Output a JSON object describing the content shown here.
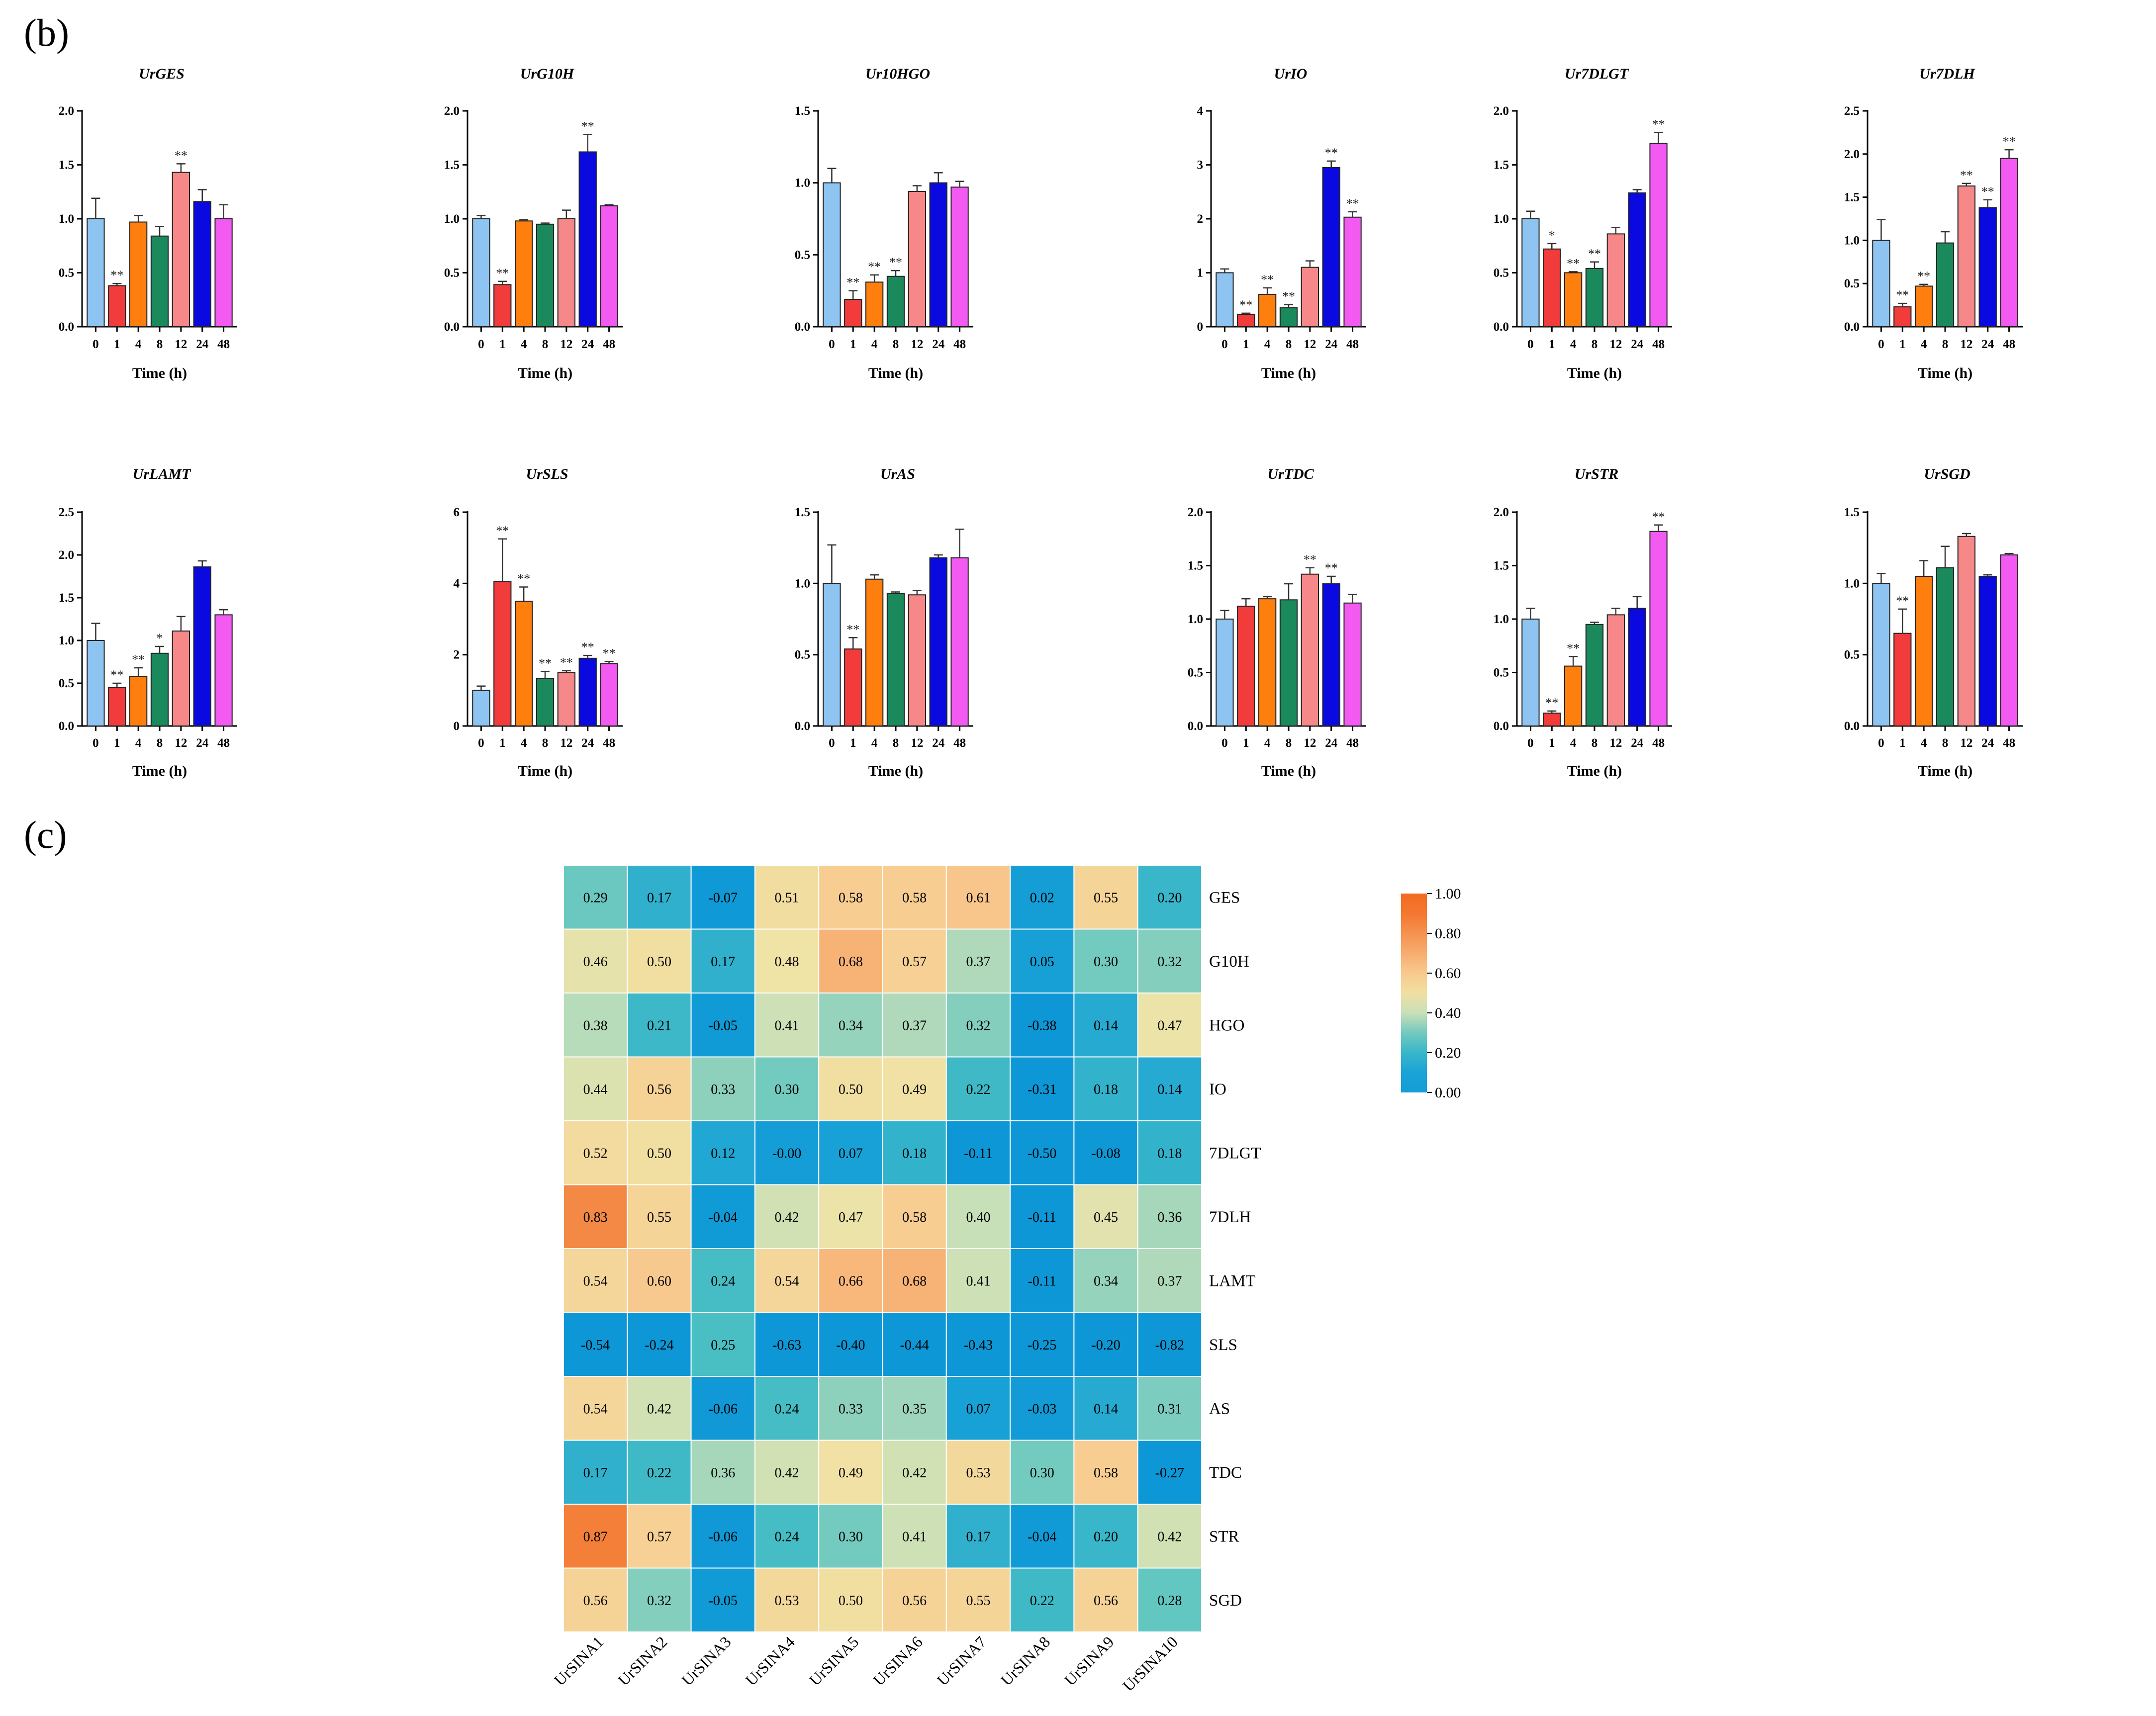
{
  "figure": {
    "panel_b_label": "(b)",
    "panel_c_label": "(c)",
    "colors": {
      "bars": [
        "#8ec4f2",
        "#f23b3b",
        "#ff7f0e",
        "#1a8a5c",
        "#f7888a",
        "#0a0ae0",
        "#f25af2"
      ],
      "heat_low": "#0d97d6",
      "heat_mid": "#f0e3a6",
      "heat_high": "#f36a22",
      "bar_stroke": "#222222",
      "axis": "#000000"
    }
  },
  "chart_data": [
    {
      "type": "bar",
      "title": "UrGES",
      "categories": [
        "0",
        "1",
        "4",
        "8",
        "12",
        "24",
        "48"
      ],
      "values": [
        1.0,
        0.38,
        0.97,
        0.84,
        1.43,
        1.16,
        1.0
      ],
      "errors": [
        0.19,
        0.02,
        0.06,
        0.09,
        0.08,
        0.11,
        0.13
      ],
      "significance": [
        "",
        "**",
        "",
        "",
        "**",
        "",
        ""
      ],
      "yticks": [
        "0.0",
        "0.5",
        "1.0",
        "1.5",
        "2.0"
      ],
      "ylim": [
        0,
        2.0
      ],
      "xlabel": "Time (h)"
    },
    {
      "type": "bar",
      "title": "UrG10H",
      "categories": [
        "0",
        "1",
        "4",
        "8",
        "12",
        "24",
        "48"
      ],
      "values": [
        1.0,
        0.39,
        0.98,
        0.95,
        1.0,
        1.62,
        1.12
      ],
      "errors": [
        0.03,
        0.03,
        0.01,
        0.01,
        0.08,
        0.16,
        0.01
      ],
      "significance": [
        "",
        "**",
        "",
        "",
        "",
        "**",
        ""
      ],
      "yticks": [
        "0.0",
        "0.5",
        "1.0",
        "1.5",
        "2.0"
      ],
      "ylim": [
        0,
        2.0
      ],
      "xlabel": "Time (h)"
    },
    {
      "type": "bar",
      "title": "Ur10HGO",
      "categories": [
        "0",
        "1",
        "4",
        "8",
        "12",
        "24",
        "48"
      ],
      "values": [
        1.0,
        0.19,
        0.31,
        0.35,
        0.94,
        1.0,
        0.97
      ],
      "errors": [
        0.1,
        0.06,
        0.05,
        0.04,
        0.04,
        0.07,
        0.04
      ],
      "significance": [
        "",
        "**",
        "**",
        "**",
        "",
        "",
        ""
      ],
      "yticks": [
        "0.0",
        "0.5",
        "1.0",
        "1.5"
      ],
      "ylim": [
        0,
        1.5
      ],
      "xlabel": "Time (h)"
    },
    {
      "type": "bar",
      "title": "UrIO",
      "categories": [
        "0",
        "1",
        "4",
        "8",
        "12",
        "24",
        "48"
      ],
      "values": [
        1.0,
        0.23,
        0.6,
        0.35,
        1.1,
        2.95,
        2.03
      ],
      "errors": [
        0.07,
        0.02,
        0.12,
        0.06,
        0.12,
        0.12,
        0.1
      ],
      "significance": [
        "",
        "**",
        "**",
        "**",
        "",
        "**",
        "**"
      ],
      "yticks": [
        "0",
        "1",
        "2",
        "3",
        "4"
      ],
      "ylim": [
        0,
        4
      ],
      "xlabel": "Time (h)"
    },
    {
      "type": "bar",
      "title": "Ur7DLGT",
      "categories": [
        "0",
        "1",
        "4",
        "8",
        "12",
        "24",
        "48"
      ],
      "values": [
        1.0,
        0.72,
        0.5,
        0.54,
        0.86,
        1.24,
        1.7
      ],
      "errors": [
        0.07,
        0.05,
        0.01,
        0.06,
        0.06,
        0.03,
        0.1
      ],
      "significance": [
        "",
        "*",
        "**",
        "**",
        "",
        "",
        "**"
      ],
      "yticks": [
        "0.0",
        "0.5",
        "1.0",
        "1.5",
        "2.0"
      ],
      "ylim": [
        0,
        2.0
      ],
      "xlabel": "Time (h)"
    },
    {
      "type": "bar",
      "title": "Ur7DLH",
      "categories": [
        "0",
        "1",
        "4",
        "8",
        "12",
        "24",
        "48"
      ],
      "values": [
        1.0,
        0.23,
        0.47,
        0.97,
        1.63,
        1.38,
        1.95
      ],
      "errors": [
        0.24,
        0.04,
        0.02,
        0.13,
        0.03,
        0.09,
        0.1
      ],
      "significance": [
        "",
        "**",
        "**",
        "",
        "**",
        "**",
        "**"
      ],
      "yticks": [
        "0.0",
        "0.5",
        "1.0",
        "1.5",
        "2.0",
        "2.5"
      ],
      "ylim": [
        0,
        2.5
      ],
      "xlabel": "Time (h)"
    },
    {
      "type": "bar",
      "title": "UrLAMT",
      "categories": [
        "0",
        "1",
        "4",
        "8",
        "12",
        "24",
        "48"
      ],
      "values": [
        1.0,
        0.45,
        0.58,
        0.85,
        1.11,
        1.86,
        1.3
      ],
      "errors": [
        0.2,
        0.05,
        0.1,
        0.08,
        0.17,
        0.07,
        0.06
      ],
      "significance": [
        "",
        "**",
        "**",
        "*",
        "",
        "",
        ""
      ],
      "yticks": [
        "0.0",
        "0.5",
        "1.0",
        "1.5",
        "2.0",
        "2.5"
      ],
      "ylim": [
        0,
        2.5
      ],
      "xlabel": "Time (h)"
    },
    {
      "type": "bar",
      "title": "UrSLS",
      "categories": [
        "0",
        "1",
        "4",
        "8",
        "12",
        "24",
        "48"
      ],
      "values": [
        1.0,
        4.05,
        3.5,
        1.33,
        1.5,
        1.9,
        1.75
      ],
      "errors": [
        0.12,
        1.2,
        0.4,
        0.2,
        0.05,
        0.08,
        0.06
      ],
      "significance": [
        "",
        "**",
        "**",
        "**",
        "**",
        "**",
        "**"
      ],
      "yticks": [
        "0",
        "2",
        "4",
        "6"
      ],
      "ylim": [
        0,
        6
      ],
      "xlabel": "Time (h)"
    },
    {
      "type": "bar",
      "title": "UrAS",
      "categories": [
        "0",
        "1",
        "4",
        "8",
        "12",
        "24",
        "48"
      ],
      "values": [
        1.0,
        0.54,
        1.03,
        0.93,
        0.92,
        1.18,
        1.18
      ],
      "errors": [
        0.27,
        0.08,
        0.03,
        0.01,
        0.03,
        0.02,
        0.2
      ],
      "significance": [
        "",
        "**",
        "",
        "",
        "",
        "",
        ""
      ],
      "yticks": [
        "0.0",
        "0.5",
        "1.0",
        "1.5"
      ],
      "ylim": [
        0,
        1.5
      ],
      "xlabel": "Time (h)"
    },
    {
      "type": "bar",
      "title": "UrTDC",
      "categories": [
        "0",
        "1",
        "4",
        "8",
        "12",
        "24",
        "48"
      ],
      "values": [
        1.0,
        1.12,
        1.19,
        1.18,
        1.42,
        1.33,
        1.15
      ],
      "errors": [
        0.08,
        0.07,
        0.02,
        0.15,
        0.06,
        0.07,
        0.08
      ],
      "significance": [
        "",
        "",
        "",
        "",
        "**",
        "**",
        ""
      ],
      "yticks": [
        "0.0",
        "0.5",
        "1.0",
        "1.5",
        "2.0"
      ],
      "ylim": [
        0,
        2.0
      ],
      "xlabel": "Time (h)"
    },
    {
      "type": "bar",
      "title": "UrSTR",
      "categories": [
        "0",
        "1",
        "4",
        "8",
        "12",
        "24",
        "48"
      ],
      "values": [
        1.0,
        0.12,
        0.56,
        0.95,
        1.04,
        1.1,
        1.82
      ],
      "errors": [
        0.1,
        0.02,
        0.09,
        0.02,
        0.06,
        0.11,
        0.06
      ],
      "significance": [
        "",
        "**",
        "**",
        "",
        "",
        "",
        "**"
      ],
      "yticks": [
        "0.0",
        "0.5",
        "1.0",
        "1.5",
        "2.0"
      ],
      "ylim": [
        0,
        2.0
      ],
      "xlabel": "Time (h)"
    },
    {
      "type": "bar",
      "title": "UrSGD",
      "categories": [
        "0",
        "1",
        "4",
        "8",
        "12",
        "24",
        "48"
      ],
      "values": [
        1.0,
        0.65,
        1.05,
        1.11,
        1.33,
        1.05,
        1.2
      ],
      "errors": [
        0.07,
        0.17,
        0.11,
        0.15,
        0.02,
        0.01,
        0.01
      ],
      "significance": [
        "",
        "**",
        "",
        "",
        "",
        "",
        ""
      ],
      "yticks": [
        "0.0",
        "0.5",
        "1.0",
        "1.5"
      ],
      "ylim": [
        0,
        1.5
      ],
      "xlabel": "Time (h)"
    },
    {
      "type": "heatmap",
      "rows": [
        "GES",
        "G10H",
        "HGO",
        "IO",
        "7DLGT",
        "7DLH",
        "LAMT",
        "SLS",
        "AS",
        "TDC",
        "STR",
        "SGD"
      ],
      "columns": [
        "UrSINA1",
        "UrSINA2",
        "UrSINA3",
        "UrSINA4",
        "UrSINA5",
        "UrSINA6",
        "UrSINA7",
        "UrSINA8",
        "UrSINA9",
        "UrSINA10"
      ],
      "values": [
        [
          "0.29",
          "0.17",
          "-0.07",
          "0.51",
          "0.58",
          "0.58",
          "0.61",
          "0.02",
          "0.55",
          "0.20"
        ],
        [
          "0.46",
          "0.50",
          "0.17",
          "0.48",
          "0.68",
          "0.57",
          "0.37",
          "0.05",
          "0.30",
          "0.32"
        ],
        [
          "0.38",
          "0.21",
          "-0.05",
          "0.41",
          "0.34",
          "0.37",
          "0.32",
          "-0.38",
          "0.14",
          "0.47"
        ],
        [
          "0.44",
          "0.56",
          "0.33",
          "0.30",
          "0.50",
          "0.49",
          "0.22",
          "-0.31",
          "0.18",
          "0.14"
        ],
        [
          "0.52",
          "0.50",
          "0.12",
          "-0.00",
          "0.07",
          "0.18",
          "-0.11",
          "-0.50",
          "-0.08",
          "0.18"
        ],
        [
          "0.83",
          "0.55",
          "-0.04",
          "0.42",
          "0.47",
          "0.58",
          "0.40",
          "-0.11",
          "0.45",
          "0.36"
        ],
        [
          "0.54",
          "0.60",
          "0.24",
          "0.54",
          "0.66",
          "0.68",
          "0.41",
          "-0.11",
          "0.34",
          "0.37"
        ],
        [
          "-0.54",
          "-0.24",
          "0.25",
          "-0.63",
          "-0.40",
          "-0.44",
          "-0.43",
          "-0.25",
          "-0.20",
          "-0.82"
        ],
        [
          "0.54",
          "0.42",
          "-0.06",
          "0.24",
          "0.33",
          "0.35",
          "0.07",
          "-0.03",
          "0.14",
          "0.31"
        ],
        [
          "0.17",
          "0.22",
          "0.36",
          "0.42",
          "0.49",
          "0.42",
          "0.53",
          "0.30",
          "0.58",
          "-0.27"
        ],
        [
          "0.87",
          "0.57",
          "-0.06",
          "0.24",
          "0.30",
          "0.41",
          "0.17",
          "-0.04",
          "0.20",
          "0.42"
        ],
        [
          "0.56",
          "0.32",
          "-0.05",
          "0.53",
          "0.50",
          "0.56",
          "0.55",
          "0.22",
          "0.56",
          "0.28"
        ]
      ],
      "colorbar": {
        "ticks": [
          "1.00",
          "0.80",
          "0.60",
          "0.40",
          "0.20",
          "0.00"
        ],
        "range": [
          0,
          1
        ]
      }
    }
  ]
}
